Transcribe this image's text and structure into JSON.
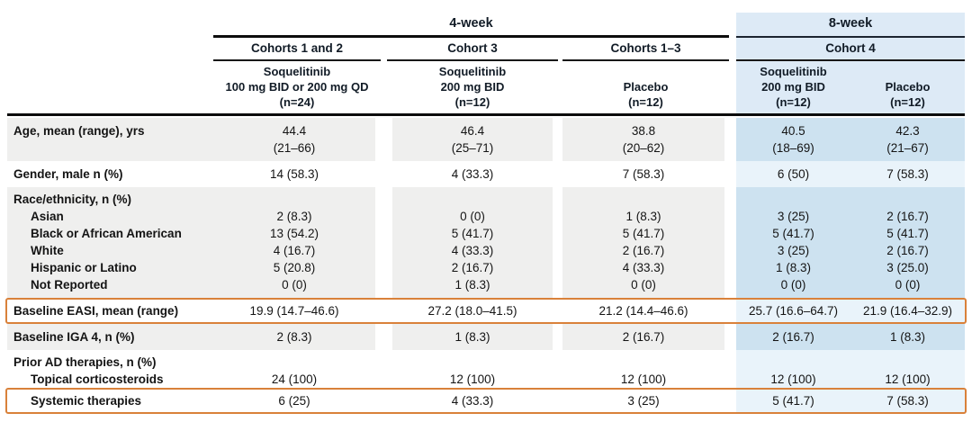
{
  "colors": {
    "stripe": "#efefee",
    "bluemed": "#cde2f0",
    "bluelight": "#e9f3fa",
    "bluehdr": "#ddeaf6",
    "orange": "#d9813a"
  },
  "table": {
    "periods": [
      "4-week",
      "8-week"
    ],
    "cohorts": [
      "Cohorts 1 and 2",
      "Cohort 3",
      "Cohorts 1–3",
      "Cohort 4"
    ],
    "column_headers": [
      "Soquelitinib\n100 mg BID or 200 mg QD\n(n=24)",
      "Soquelitinib\n200 mg BID\n(n=12)",
      "Placebo\n(n=12)",
      "Soquelitinib\n200 mg BID\n(n=12)",
      "Placebo\n(n=12)"
    ],
    "rows": [
      {
        "label": "Age, mean (range), yrs",
        "shaded": true,
        "values": [
          "44.4\n(21–66)",
          "46.4\n(25–71)",
          "38.8\n(20–62)",
          "40.5\n(18–69)",
          "42.3\n(21–67)"
        ]
      },
      {
        "label": "Gender, male n (%)",
        "shaded": false,
        "values": [
          "14 (58.3)",
          "4 (33.3)",
          "7 (58.3)",
          "6 (50)",
          "7 (58.3)"
        ]
      },
      {
        "label": "Race/ethnicity, n (%)",
        "shaded": true,
        "section": true,
        "tight": true,
        "pad_top": true,
        "values": [
          "",
          "",
          "",
          "",
          ""
        ]
      },
      {
        "label": "Asian",
        "shaded": true,
        "indent": true,
        "tight": true,
        "values": [
          "2 (8.3)",
          "0 (0)",
          "1 (8.3)",
          "3 (25)",
          "2 (16.7)"
        ]
      },
      {
        "label": "Black or African American",
        "shaded": true,
        "indent": true,
        "tight": true,
        "values": [
          "13 (54.2)",
          "5 (41.7)",
          "5 (41.7)",
          "5 (41.7)",
          "5 (41.7)"
        ]
      },
      {
        "label": "White",
        "shaded": true,
        "indent": true,
        "tight": true,
        "values": [
          "4 (16.7)",
          "4 (33.3)",
          "2 (16.7)",
          "3 (25)",
          "2 (16.7)"
        ]
      },
      {
        "label": "Hispanic or Latino",
        "shaded": true,
        "indent": true,
        "tight": true,
        "values": [
          "5 (20.8)",
          "2 (16.7)",
          "4 (33.3)",
          "1 (8.3)",
          "3 (25.0)"
        ]
      },
      {
        "label": "Not Reported",
        "shaded": true,
        "indent": true,
        "tight": true,
        "pad_bottom": true,
        "values": [
          "0 (0)",
          "1 (8.3)",
          "0 (0)",
          "0 (0)",
          "0 (0)"
        ]
      },
      {
        "label": "Baseline EASI, mean (range)",
        "shaded": false,
        "highlight": true,
        "values": [
          "19.9 (14.7–46.6)",
          "27.2 (18.0–41.5)",
          "21.2 (14.4–46.6)",
          "25.7 (16.6–64.7)",
          "21.9 (16.4–32.9)"
        ]
      },
      {
        "label": "Baseline IGA 4, n (%)",
        "shaded": true,
        "values": [
          "2 (8.3)",
          "1 (8.3)",
          "2 (16.7)",
          "2 (16.7)",
          "1 (8.3)"
        ]
      },
      {
        "label": "Prior AD therapies, n (%)",
        "shaded": false,
        "section": true,
        "tight": true,
        "pad_top": true,
        "values": [
          "",
          "",
          "",
          "",
          ""
        ]
      },
      {
        "label": "Topical corticosteroids",
        "shaded": false,
        "indent": true,
        "tight": true,
        "values": [
          "24 (100)",
          "12 (100)",
          "12 (100)",
          "12 (100)",
          "12 (100)"
        ]
      },
      {
        "label": "Systemic therapies",
        "shaded": false,
        "indent": true,
        "highlight": true,
        "tight": true,
        "values": [
          "6 (25)",
          "4 (33.3)",
          "3 (25)",
          "5 (41.7)",
          "7 (58.3)"
        ]
      }
    ]
  }
}
